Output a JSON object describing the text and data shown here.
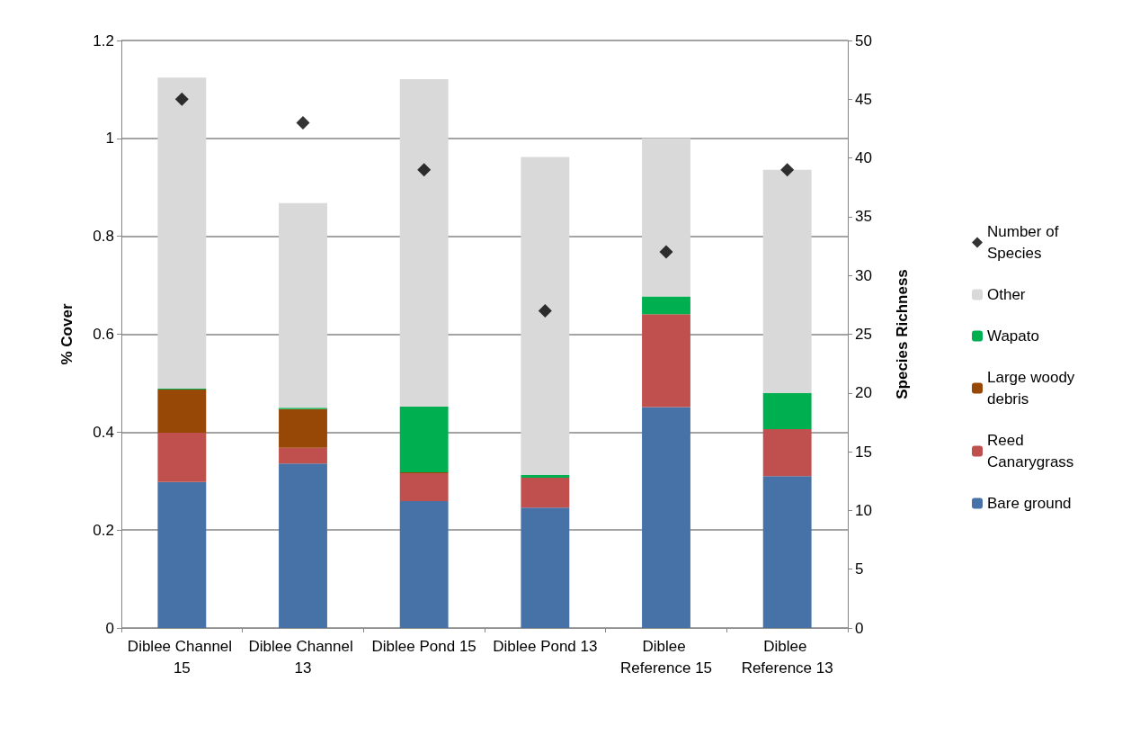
{
  "chart_data": {
    "type": "bar",
    "stacked": true,
    "ylabel": "% Cover",
    "y2label": "Species Richness",
    "categories": [
      "Diblee Channel 15",
      "Diblee Channel 13",
      "Diblee Pond 15",
      "Diblee Pond 13",
      "Diblee Reference 15",
      "Diblee Reference 13"
    ],
    "series": [
      {
        "name": "Bare ground",
        "color": "#4672a8",
        "values": [
          0.298,
          0.336,
          0.259,
          0.246,
          0.451,
          0.31
        ]
      },
      {
        "name": "Reed Canarygrass",
        "color": "#c0504d",
        "values": [
          0.101,
          0.032,
          0.057,
          0.061,
          0.19,
          0.096
        ]
      },
      {
        "name": "Large woody debris",
        "color": "#974706",
        "values": [
          0.088,
          0.079,
          0.002,
          0,
          0,
          0
        ]
      },
      {
        "name": "Wapato",
        "color": "#00b050",
        "values": [
          0.002,
          0.003,
          0.134,
          0.006,
          0.036,
          0.074
        ]
      },
      {
        "name": "Other",
        "color": "#d9d9d9",
        "values": [
          0.635,
          0.418,
          0.669,
          0.649,
          0.323,
          0.456
        ]
      },
      {
        "name": "Number of Species",
        "type": "scatter",
        "axis": "y2",
        "marker": "diamond",
        "color": "#000000",
        "values": [
          45,
          43,
          39,
          27,
          32,
          39
        ]
      }
    ],
    "ylim": [
      0,
      1.2
    ],
    "yticks": [
      0,
      0.2,
      0.4,
      0.6,
      0.8,
      1,
      1.2
    ],
    "y2lim": [
      0,
      50
    ],
    "y2ticks": [
      0,
      5,
      10,
      15,
      20,
      25,
      30,
      35,
      40,
      45,
      50
    ],
    "grid": "y",
    "legend": "right"
  }
}
